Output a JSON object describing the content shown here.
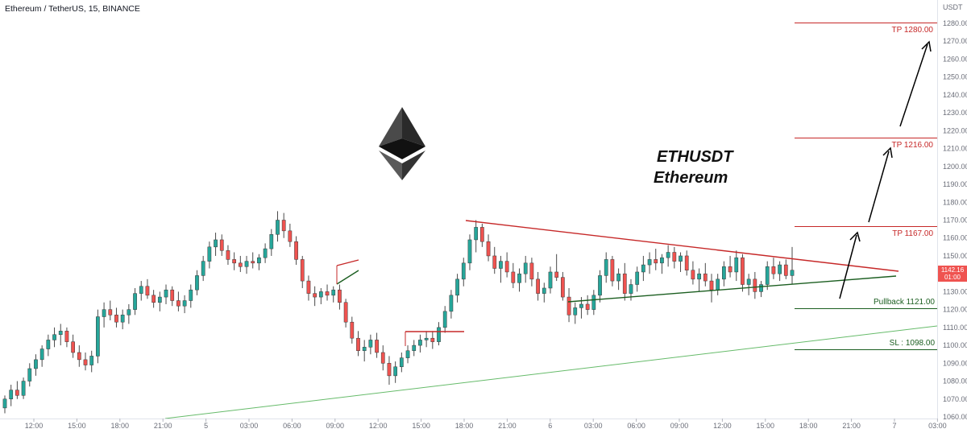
{
  "header": {
    "title": "Ethereum / TetherUS, 15, BINANCE"
  },
  "axis": {
    "unit": "USDT",
    "price_labels": [
      "1280.00",
      "1270.00",
      "1260.00",
      "1250.00",
      "1240.00",
      "1230.00",
      "1220.00",
      "1210.00",
      "1200.00",
      "1190.00",
      "1180.00",
      "1170.00",
      "1160.00",
      "1150.00",
      "1140.00",
      "1130.00",
      "1120.00",
      "1110.00",
      "1100.00",
      "1090.00",
      "1080.00",
      "1070.00",
      "1060.00"
    ],
    "time_labels": [
      "12:00",
      "15:00",
      "18:00",
      "21:00",
      "5",
      "03:00",
      "06:00",
      "09:00",
      "12:00",
      "15:00",
      "18:00",
      "21:00",
      "6",
      "03:00",
      "06:00",
      "09:00",
      "12:00",
      "15:00",
      "18:00",
      "21:00",
      "7",
      "03:00"
    ]
  },
  "last_price": {
    "price": "1142.16",
    "countdown": "01:00"
  },
  "annotations": {
    "symbol": "ETHUSDT",
    "name": "Ethereum",
    "tp3": "TP 1280.00",
    "tp2": "TP 1216.00",
    "tp1": "TP 1167.00",
    "pullback": "Pullback 1121.00",
    "sl": "SL : 1098.00"
  },
  "colors": {
    "up": "#26a69a",
    "down": "#ef5350",
    "resistance": "#c62828",
    "support": "#1b5e20",
    "long_trend": "#66bb6a",
    "logo": "#3c3c3d"
  },
  "chart_data": {
    "type": "candlestick",
    "symbol": "Ethereum / TetherUS",
    "timeframe": "15",
    "exchange": "BINANCE",
    "y_unit": "USDT",
    "ylim": [
      1060,
      1290
    ],
    "levels": [
      {
        "label": "TP 1280.00",
        "price": 1280
      },
      {
        "label": "TP 1216.00",
        "price": 1216
      },
      {
        "label": "TP 1167.00",
        "price": 1167
      },
      {
        "label": "Pullback 1121.00",
        "price": 1121
      },
      {
        "label": "SL : 1098.00",
        "price": 1098
      }
    ],
    "ohlc": [
      [
        1065,
        1072,
        1062,
        1070
      ],
      [
        1070,
        1078,
        1066,
        1075
      ],
      [
        1075,
        1080,
        1070,
        1072
      ],
      [
        1072,
        1082,
        1070,
        1080
      ],
      [
        1080,
        1090,
        1077,
        1087
      ],
      [
        1087,
        1095,
        1083,
        1092
      ],
      [
        1092,
        1100,
        1088,
        1098
      ],
      [
        1098,
        1106,
        1094,
        1103
      ],
      [
        1103,
        1110,
        1099,
        1106
      ],
      [
        1106,
        1112,
        1100,
        1108
      ],
      [
        1108,
        1110,
        1099,
        1102
      ],
      [
        1102,
        1106,
        1093,
        1096
      ],
      [
        1096,
        1100,
        1088,
        1092
      ],
      [
        1092,
        1096,
        1086,
        1089
      ],
      [
        1089,
        1097,
        1085,
        1094
      ],
      [
        1094,
        1120,
        1090,
        1116
      ],
      [
        1116,
        1124,
        1110,
        1120
      ],
      [
        1120,
        1125,
        1114,
        1117
      ],
      [
        1117,
        1121,
        1110,
        1113
      ],
      [
        1113,
        1120,
        1109,
        1117
      ],
      [
        1117,
        1123,
        1112,
        1120
      ],
      [
        1120,
        1132,
        1117,
        1129
      ],
      [
        1129,
        1136,
        1125,
        1133
      ],
      [
        1133,
        1137,
        1126,
        1128
      ],
      [
        1128,
        1131,
        1121,
        1124
      ],
      [
        1124,
        1130,
        1119,
        1127
      ],
      [
        1127,
        1134,
        1123,
        1131
      ],
      [
        1131,
        1133,
        1122,
        1125
      ],
      [
        1125,
        1130,
        1119,
        1122
      ],
      [
        1122,
        1128,
        1118,
        1125
      ],
      [
        1125,
        1134,
        1121,
        1131
      ],
      [
        1131,
        1142,
        1128,
        1139
      ],
      [
        1139,
        1150,
        1136,
        1147
      ],
      [
        1147,
        1158,
        1143,
        1155
      ],
      [
        1155,
        1163,
        1150,
        1159
      ],
      [
        1159,
        1162,
        1150,
        1153
      ],
      [
        1153,
        1156,
        1145,
        1148
      ],
      [
        1148,
        1152,
        1142,
        1146
      ],
      [
        1146,
        1150,
        1141,
        1144
      ],
      [
        1144,
        1150,
        1140,
        1147
      ],
      [
        1147,
        1152,
        1143,
        1146
      ],
      [
        1146,
        1151,
        1142,
        1149
      ],
      [
        1149,
        1157,
        1146,
        1154
      ],
      [
        1154,
        1165,
        1150,
        1162
      ],
      [
        1162,
        1175,
        1158,
        1170
      ],
      [
        1170,
        1174,
        1160,
        1164
      ],
      [
        1164,
        1168,
        1155,
        1158
      ],
      [
        1158,
        1161,
        1145,
        1148
      ],
      [
        1148,
        1150,
        1132,
        1136
      ],
      [
        1136,
        1139,
        1125,
        1129
      ],
      [
        1129,
        1133,
        1122,
        1127
      ],
      [
        1127,
        1132,
        1123,
        1130
      ],
      [
        1130,
        1134,
        1125,
        1128
      ],
      [
        1128,
        1133,
        1124,
        1131
      ],
      [
        1131,
        1134,
        1120,
        1124
      ],
      [
        1124,
        1126,
        1110,
        1113
      ],
      [
        1113,
        1116,
        1101,
        1104
      ],
      [
        1104,
        1108,
        1094,
        1097
      ],
      [
        1097,
        1103,
        1091,
        1099
      ],
      [
        1099,
        1106,
        1095,
        1103
      ],
      [
        1103,
        1107,
        1093,
        1096
      ],
      [
        1096,
        1100,
        1086,
        1090
      ],
      [
        1090,
        1094,
        1078,
        1083
      ],
      [
        1083,
        1091,
        1079,
        1088
      ],
      [
        1088,
        1096,
        1085,
        1093
      ],
      [
        1093,
        1100,
        1090,
        1097
      ],
      [
        1097,
        1103,
        1094,
        1100
      ],
      [
        1100,
        1106,
        1096,
        1103
      ],
      [
        1103,
        1108,
        1099,
        1104
      ],
      [
        1104,
        1108,
        1098,
        1102
      ],
      [
        1102,
        1113,
        1100,
        1110
      ],
      [
        1110,
        1122,
        1107,
        1119
      ],
      [
        1119,
        1131,
        1115,
        1128
      ],
      [
        1128,
        1140,
        1124,
        1137
      ],
      [
        1137,
        1149,
        1133,
        1146
      ],
      [
        1146,
        1162,
        1142,
        1159
      ],
      [
        1159,
        1170,
        1152,
        1166
      ],
      [
        1166,
        1168,
        1155,
        1158
      ],
      [
        1158,
        1162,
        1147,
        1150
      ],
      [
        1150,
        1155,
        1140,
        1143
      ],
      [
        1143,
        1150,
        1135,
        1147
      ],
      [
        1147,
        1152,
        1138,
        1141
      ],
      [
        1141,
        1146,
        1132,
        1135
      ],
      [
        1135,
        1143,
        1130,
        1140
      ],
      [
        1140,
        1150,
        1135,
        1146
      ],
      [
        1146,
        1149,
        1133,
        1137
      ],
      [
        1137,
        1141,
        1125,
        1129
      ],
      [
        1129,
        1135,
        1124,
        1132
      ],
      [
        1132,
        1144,
        1129,
        1141
      ],
      [
        1141,
        1151,
        1136,
        1138
      ],
      [
        1138,
        1141,
        1125,
        1127
      ],
      [
        1127,
        1132,
        1113,
        1117
      ],
      [
        1117,
        1124,
        1112,
        1121
      ],
      [
        1121,
        1127,
        1115,
        1123
      ],
      [
        1123,
        1128,
        1117,
        1120
      ],
      [
        1120,
        1131,
        1117,
        1128
      ],
      [
        1128,
        1142,
        1124,
        1139
      ],
      [
        1139,
        1152,
        1135,
        1148
      ],
      [
        1148,
        1150,
        1133,
        1136
      ],
      [
        1136,
        1143,
        1131,
        1140
      ],
      [
        1140,
        1146,
        1125,
        1129
      ],
      [
        1129,
        1137,
        1125,
        1134
      ],
      [
        1134,
        1144,
        1130,
        1141
      ],
      [
        1141,
        1150,
        1136,
        1145
      ],
      [
        1145,
        1152,
        1140,
        1148
      ],
      [
        1148,
        1154,
        1142,
        1146
      ],
      [
        1146,
        1151,
        1140,
        1149
      ],
      [
        1149,
        1156,
        1144,
        1152
      ],
      [
        1152,
        1155,
        1143,
        1147
      ],
      [
        1147,
        1152,
        1141,
        1150
      ],
      [
        1150,
        1153,
        1139,
        1142
      ],
      [
        1142,
        1147,
        1134,
        1137
      ],
      [
        1137,
        1143,
        1130,
        1140
      ],
      [
        1140,
        1146,
        1133,
        1136
      ],
      [
        1136,
        1140,
        1124,
        1131
      ],
      [
        1131,
        1140,
        1128,
        1137
      ],
      [
        1137,
        1147,
        1133,
        1144
      ],
      [
        1144,
        1150,
        1138,
        1141
      ],
      [
        1141,
        1153,
        1136,
        1149
      ],
      [
        1149,
        1151,
        1130,
        1134
      ],
      [
        1134,
        1140,
        1128,
        1137
      ],
      [
        1137,
        1141,
        1126,
        1130
      ],
      [
        1130,
        1136,
        1127,
        1134
      ],
      [
        1134,
        1147,
        1131,
        1144
      ],
      [
        1144,
        1149,
        1137,
        1140
      ],
      [
        1140,
        1147,
        1136,
        1145
      ],
      [
        1145,
        1148,
        1137,
        1139
      ],
      [
        1139,
        1155,
        1134,
        1142
      ]
    ]
  }
}
